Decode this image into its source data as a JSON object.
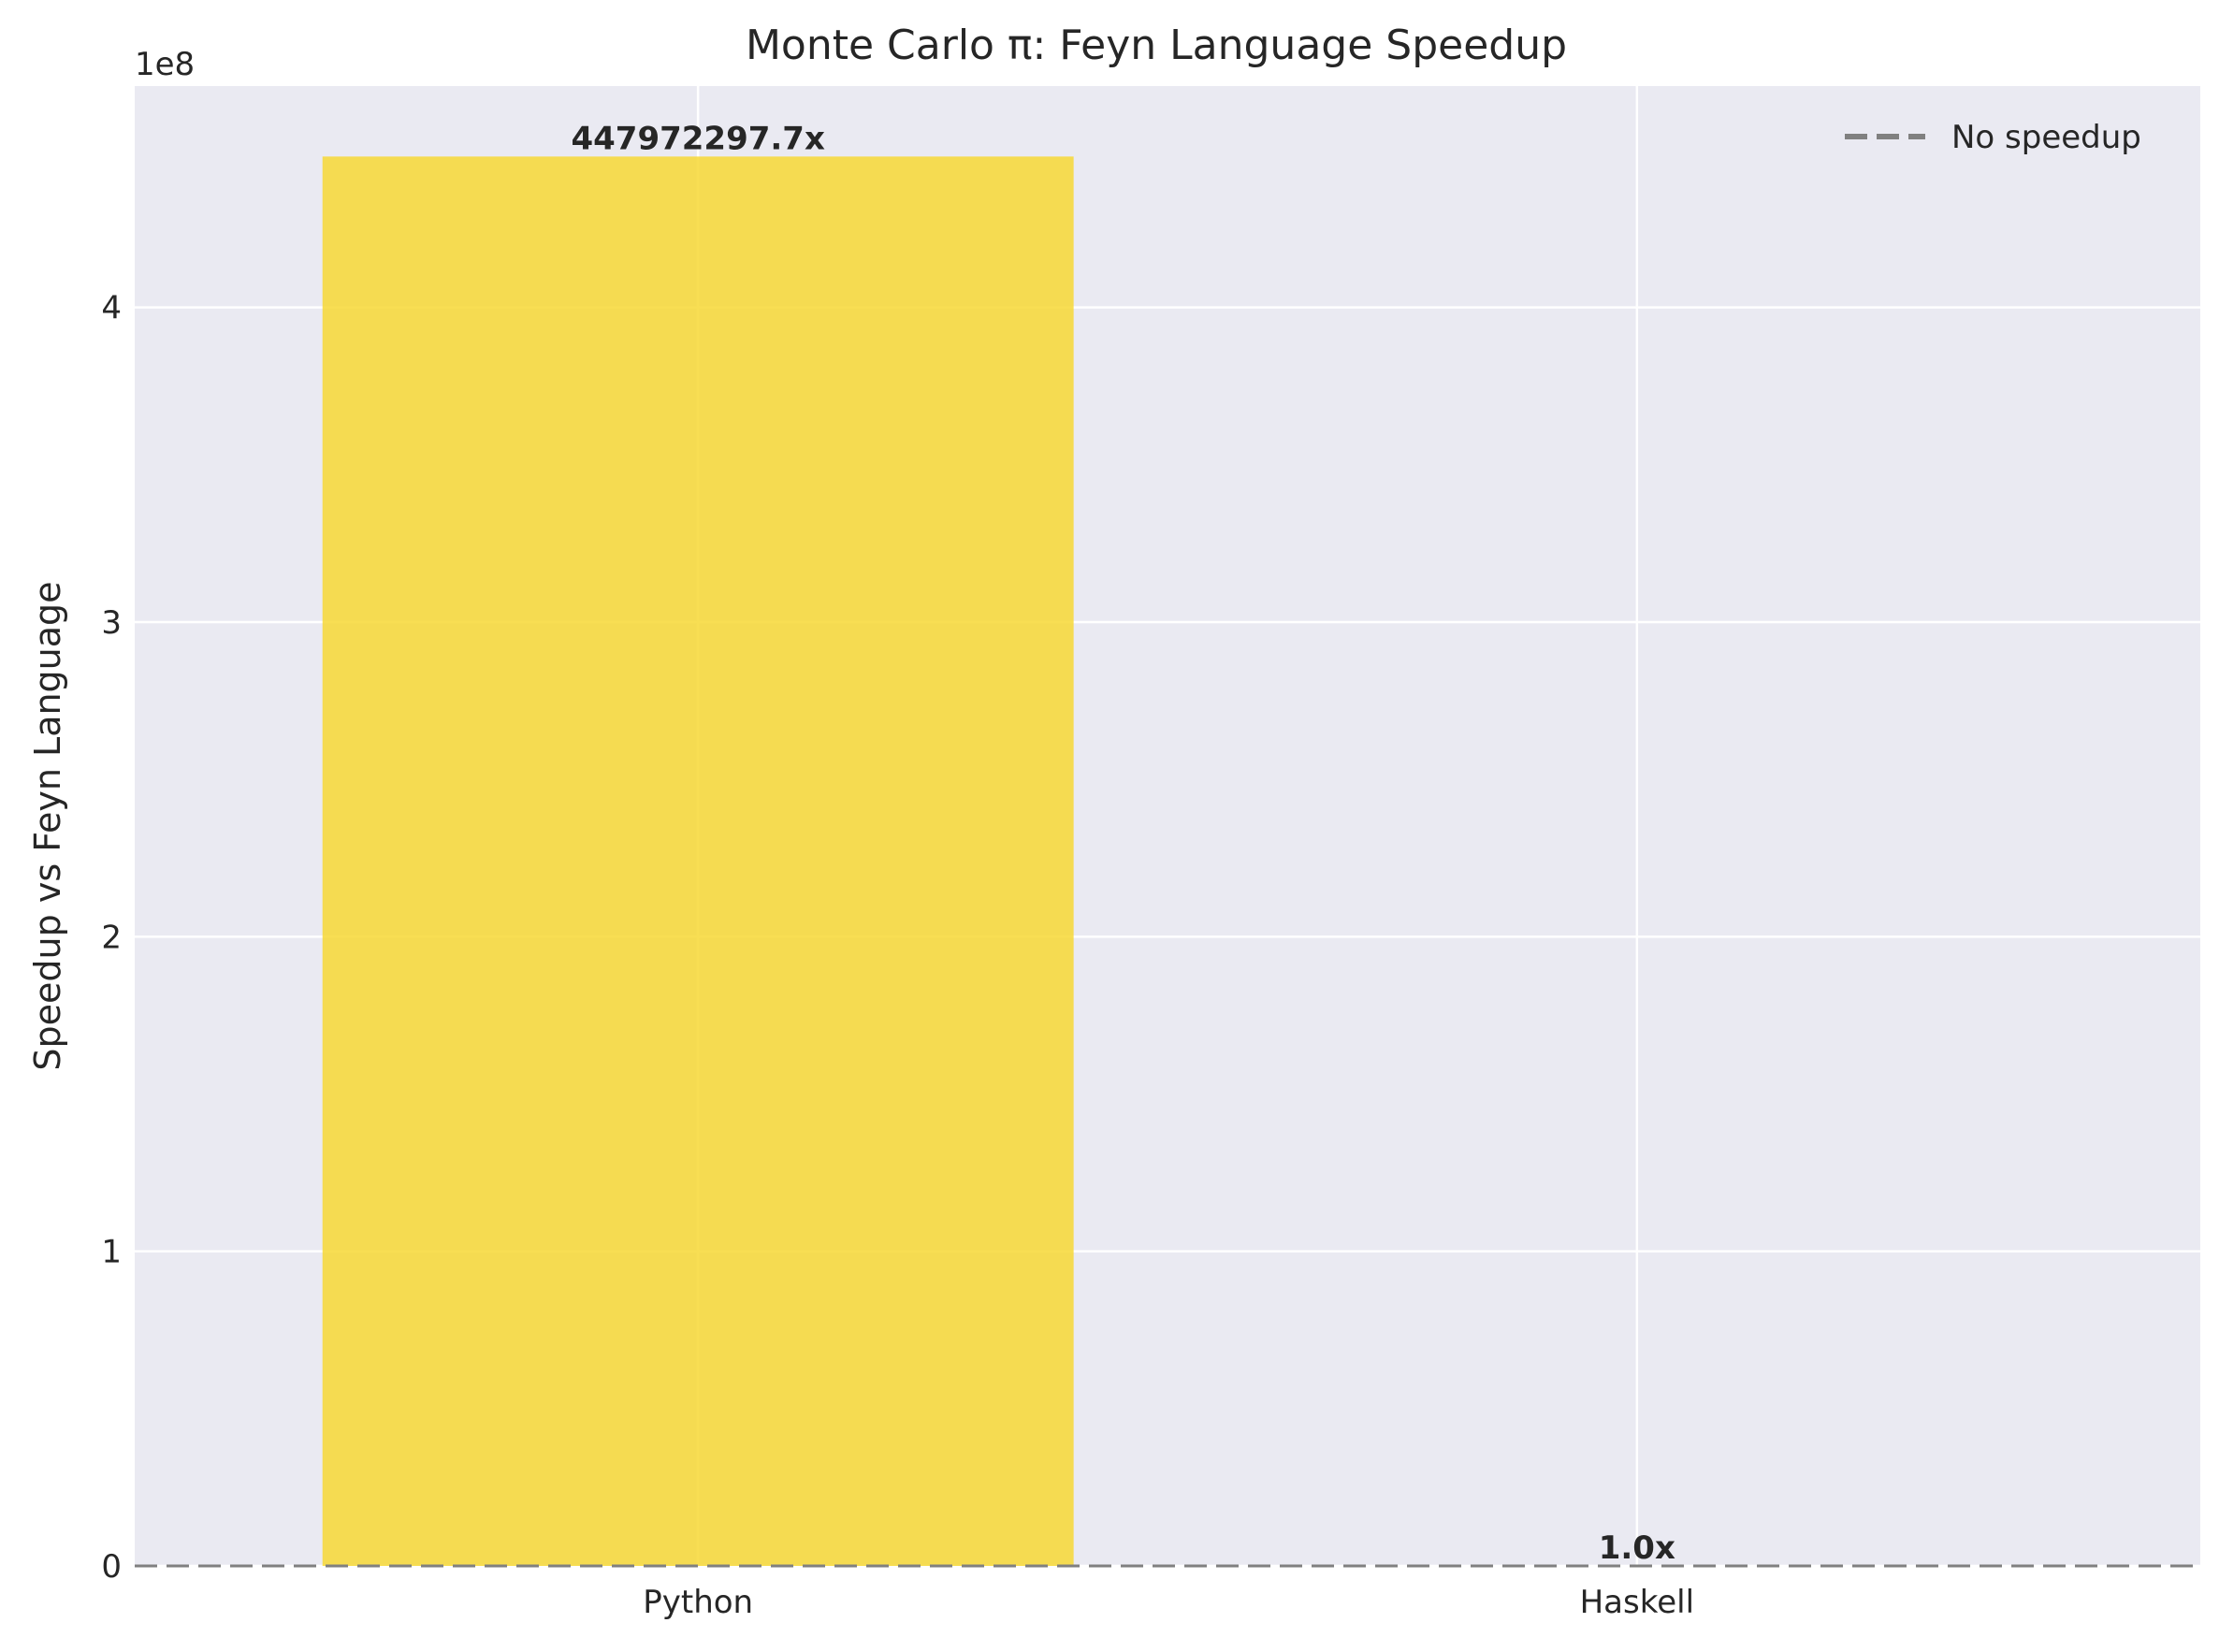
{
  "chart_data": {
    "type": "bar",
    "title": "Monte Carlo π: Feyn Language Speedup",
    "xlabel": "",
    "ylabel": "Speedup vs Feyn Language",
    "categories": [
      "Python",
      "Haskell"
    ],
    "values": [
      447972297.7,
      1.0
    ],
    "data_labels": [
      "447972297.7x",
      "1.0x"
    ],
    "bar_color": "#f7d835",
    "y_scale_note": "1e8",
    "y_ticks": [
      0,
      100000000,
      200000000,
      300000000,
      400000000
    ],
    "y_tick_labels": [
      "0",
      "1",
      "2",
      "3",
      "4"
    ],
    "ylim": [
      0,
      470370912.6
    ],
    "grid": true,
    "background_color": "#eaeaf2",
    "reference_line": {
      "value": 1,
      "label": "No speedup",
      "style": "dashed",
      "color": "#808080"
    },
    "legend": {
      "position": "top-right",
      "entries": [
        "No speedup"
      ]
    }
  }
}
